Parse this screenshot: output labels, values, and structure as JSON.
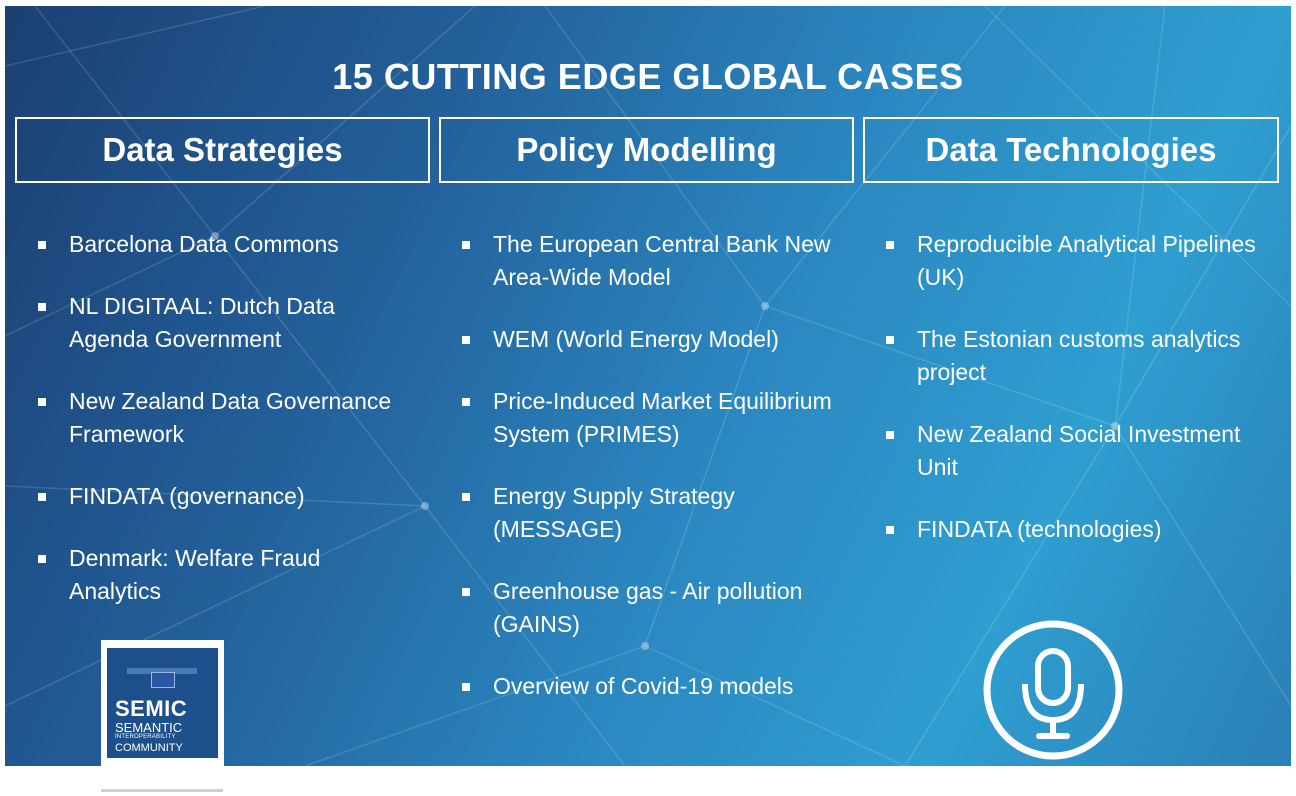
{
  "title": "15 CUTTING EDGE GLOBAL CASES",
  "columns": [
    {
      "heading": "Data Strategies",
      "items": [
        "Barcelona Data Commons",
        "NL DIGITAAL: Dutch Data Agenda Government",
        "New Zealand Data Governance Framework",
        "FINDATA (governance)",
        "Denmark: Welfare Fraud Analytics"
      ]
    },
    {
      "heading": "Policy Modelling",
      "items": [
        "The European Central Bank New Area-Wide Model",
        "WEM (World Energy Model)",
        "Price-Induced Market Equilibrium System (PRIMES)",
        "Energy Supply Strategy (MESSAGE)",
        "Greenhouse gas - Air pollution (GAINS)",
        "Overview of Covid-19 models"
      ]
    },
    {
      "heading": "Data Technologies",
      "items": [
        "Reproducible Analytical Pipelines (UK)",
        "The Estonian customs analytics project",
        "New Zealand Social Investment Unit",
        "FINDATA (technologies)"
      ]
    }
  ],
  "logo": {
    "main": "SEMIC",
    "line1": "SEMANTIC",
    "line2": "INTEROPERABILITY",
    "line3": "COMMUNITY"
  },
  "icons": {
    "microphone": "microphone-icon",
    "logo_flag": "eu-flag-icon"
  },
  "colors": {
    "background_dark": "#1b3f73",
    "background_light": "#2f9ed0",
    "text": "#ffffff",
    "logo_blue": "#1d4f8a"
  }
}
